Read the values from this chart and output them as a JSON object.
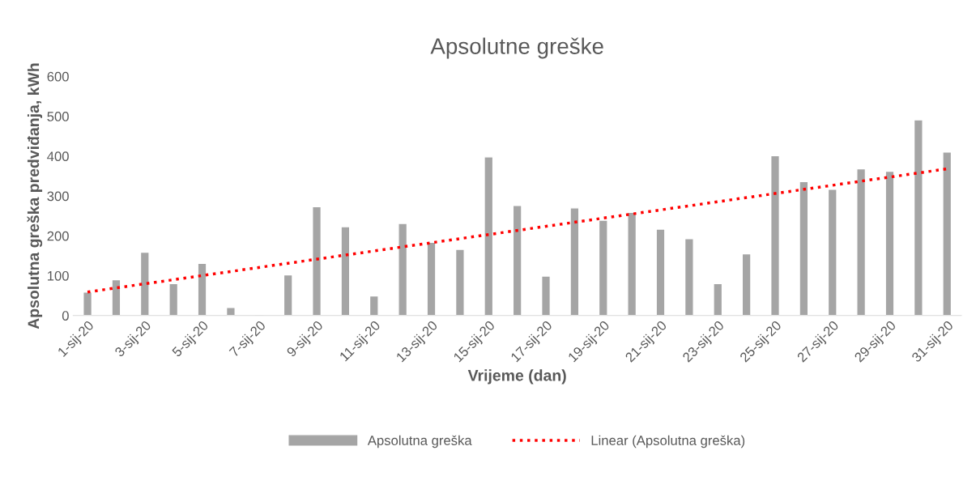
{
  "chart_data": {
    "type": "bar",
    "title": "Apsolutne greške",
    "xlabel": "Vrijeme (dan)",
    "ylabel": "Apsolutna greška predviđanja, kWh",
    "categories": [
      "1-sij-20",
      null,
      "3-sij-20",
      null,
      "5-sij-20",
      null,
      "7-sij-20",
      null,
      "9-sij-20",
      null,
      "11-sij-20",
      null,
      "13-sij-20",
      null,
      "15-sij-20",
      null,
      "17-sij-20",
      null,
      "19-sij-20",
      null,
      "21-sij-20",
      null,
      "23-sij-20",
      null,
      "25-sij-20",
      null,
      "27-sij-20",
      null,
      "29-sij-20",
      null,
      "31-sij-20"
    ],
    "series": [
      {
        "name": "Apsolutna greška",
        "color": "#a5a5a5",
        "values": [
          59,
          90,
          159,
          80,
          131,
          20,
          3,
          102,
          273,
          223,
          49,
          231,
          184,
          166,
          398,
          276,
          99,
          270,
          239,
          259,
          217,
          193,
          80,
          155,
          401,
          336,
          317,
          368,
          362,
          491,
          410
        ]
      },
      {
        "name": "Linear (Apsolutna greška)",
        "type": "line",
        "line_style": "dotted",
        "color": "#ff0000",
        "values": [
          59,
          null,
          null,
          null,
          null,
          null,
          null,
          null,
          null,
          null,
          null,
          null,
          null,
          null,
          null,
          null,
          null,
          null,
          null,
          null,
          null,
          null,
          null,
          null,
          null,
          null,
          null,
          null,
          null,
          null,
          368
        ]
      }
    ],
    "ylim": [
      0,
      600
    ],
    "yticks": [
      0,
      100,
      200,
      300,
      400,
      500,
      600
    ],
    "grid": false,
    "legend": "bottom"
  }
}
